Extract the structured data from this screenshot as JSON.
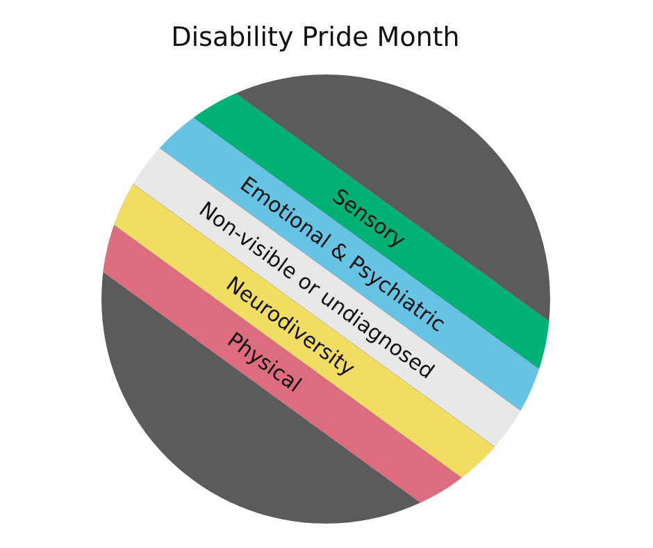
{
  "title": "Disability Pride Month",
  "background_color": "#5a5b5a",
  "stripes": [
    {
      "label": "Sensory",
      "color": "#00b176"
    },
    {
      "label": "Emotional & Psychiatric",
      "color": "#67c3e3"
    },
    {
      "label": "Non-visible or undiagnosed",
      "color": "#e8e8e8"
    },
    {
      "label": "Neurodiversity",
      "color": "#f0dd62"
    },
    {
      "label": "Physical",
      "color": "#dd6c7e"
    }
  ]
}
